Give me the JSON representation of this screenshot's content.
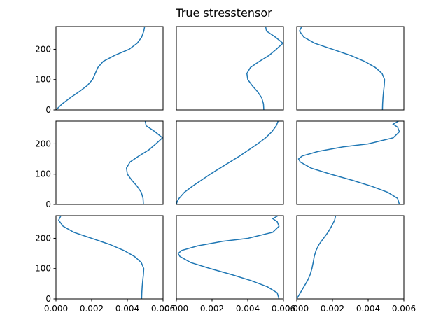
{
  "chart_data": {
    "type": "line",
    "title": "True stresstensor",
    "grid": false,
    "legend": "none",
    "layout": "3x3 subplots",
    "xlim": [
      0,
      0.006
    ],
    "ylim": [
      0,
      275
    ],
    "x_ticks": [
      "0.000",
      "0.002",
      "0.004",
      "0.006"
    ],
    "y_ticks": [
      "0",
      "100",
      "200"
    ],
    "color": "#1f77b4",
    "panels": [
      {
        "id": "r1c1",
        "y": [
          0,
          20,
          40,
          60,
          80,
          100,
          120,
          140,
          160,
          180,
          200,
          220,
          240,
          260,
          275
        ],
        "x": [
          0.0,
          0.00035,
          0.0008,
          0.0013,
          0.00175,
          0.00205,
          0.0022,
          0.00235,
          0.00265,
          0.0033,
          0.0041,
          0.00455,
          0.0048,
          0.00492,
          0.00497
        ]
      },
      {
        "id": "r1c2",
        "y": [
          0,
          20,
          40,
          60,
          80,
          100,
          120,
          140,
          160,
          180,
          200,
          220,
          240,
          260,
          275
        ],
        "x": [
          0.0049,
          0.00488,
          0.00478,
          0.00455,
          0.00425,
          0.004,
          0.00395,
          0.00415,
          0.00465,
          0.0052,
          0.0056,
          0.00597,
          0.00555,
          0.00505,
          0.005
        ]
      },
      {
        "id": "r1c3",
        "y": [
          0,
          20,
          40,
          60,
          80,
          100,
          120,
          140,
          160,
          180,
          200,
          220,
          240,
          260,
          275
        ],
        "x": [
          0.0048,
          0.00481,
          0.00483,
          0.00486,
          0.0049,
          0.00492,
          0.00478,
          0.0044,
          0.0038,
          0.003,
          0.002,
          0.001,
          0.0004,
          0.00015,
          0.00028
        ]
      },
      {
        "id": "r2c1",
        "y": [
          0,
          20,
          40,
          60,
          80,
          100,
          120,
          140,
          160,
          180,
          200,
          220,
          240,
          260,
          275
        ],
        "x": [
          0.0049,
          0.00488,
          0.00478,
          0.00455,
          0.00425,
          0.004,
          0.00395,
          0.00415,
          0.00465,
          0.0052,
          0.0056,
          0.00597,
          0.00555,
          0.00505,
          0.005
        ]
      },
      {
        "id": "r2c2",
        "y": [
          0,
          10,
          20,
          40,
          60,
          80,
          100,
          120,
          140,
          160,
          180,
          200,
          220,
          240,
          260,
          275
        ],
        "x": [
          0.0,
          5e-05,
          0.00015,
          0.00045,
          0.0009,
          0.0014,
          0.0019,
          0.00245,
          0.003,
          0.00355,
          0.00405,
          0.00455,
          0.005,
          0.00535,
          0.0056,
          0.0057
        ]
      },
      {
        "id": "r2c3",
        "y": [
          0,
          20,
          40,
          60,
          80,
          100,
          120,
          140,
          150,
          160,
          175,
          190,
          200,
          220,
          240,
          255,
          265,
          275
        ],
        "x": [
          0.00575,
          0.00565,
          0.0051,
          0.0042,
          0.0031,
          0.0019,
          0.0008,
          0.0002,
          0.0001,
          0.0003,
          0.0012,
          0.0026,
          0.004,
          0.0054,
          0.00575,
          0.00565,
          0.0054,
          0.0057
        ]
      },
      {
        "id": "r3c1",
        "y": [
          0,
          20,
          40,
          60,
          80,
          100,
          120,
          140,
          160,
          180,
          200,
          220,
          240,
          260,
          275
        ],
        "x": [
          0.0048,
          0.00481,
          0.00483,
          0.00486,
          0.0049,
          0.00492,
          0.00478,
          0.0044,
          0.0038,
          0.003,
          0.002,
          0.001,
          0.0004,
          0.00015,
          0.00028
        ]
      },
      {
        "id": "r3c2",
        "y": [
          0,
          20,
          40,
          60,
          80,
          100,
          120,
          140,
          150,
          160,
          175,
          190,
          200,
          220,
          240,
          255,
          265,
          275
        ],
        "x": [
          0.00575,
          0.00565,
          0.0051,
          0.0042,
          0.0031,
          0.0019,
          0.0008,
          0.0002,
          0.0001,
          0.0003,
          0.0012,
          0.0026,
          0.004,
          0.0054,
          0.00575,
          0.00565,
          0.0054,
          0.0057
        ]
      },
      {
        "id": "r3c3",
        "y": [
          0,
          20,
          40,
          60,
          80,
          100,
          120,
          140,
          160,
          180,
          200,
          220,
          240,
          260,
          275
        ],
        "x": [
          0.0,
          0.0002,
          0.0004,
          0.0006,
          0.00075,
          0.00085,
          0.00092,
          0.00098,
          0.00108,
          0.00125,
          0.0015,
          0.00175,
          0.00195,
          0.00212,
          0.00218
        ]
      }
    ]
  }
}
